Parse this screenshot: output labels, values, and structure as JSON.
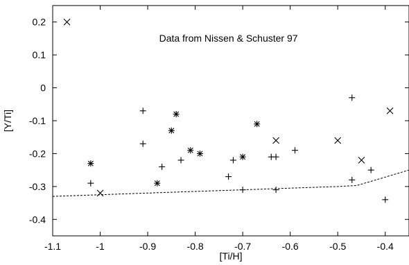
{
  "chart_data": {
    "type": "scatter",
    "title": "",
    "xlabel": "[Ti/H]",
    "ylabel": "[Y/Ti]",
    "xlim": [
      -1.1,
      -0.35
    ],
    "ylim": [
      -0.45,
      0.25
    ],
    "xticks": [
      -1.1,
      -1,
      -0.9,
      -0.8,
      -0.7,
      -0.6,
      -0.5,
      -0.4
    ],
    "xtick_labels": [
      "-1.1",
      "-1",
      "-0.9",
      "-0.8",
      "-0.7",
      "-0.6",
      "-0.5",
      "-0.4"
    ],
    "yticks": [
      0.2,
      0.1,
      0,
      -0.1,
      -0.2,
      -0.3,
      -0.4
    ],
    "ytick_labels": [
      "0.2",
      "0.1",
      "0",
      "-0.1",
      "-0.2",
      "-0.3",
      "-0.4"
    ],
    "grid": false,
    "annotations": [
      {
        "text": "Data from Nissen & Schuster 97",
        "x": -0.73,
        "y": 0.14
      }
    ],
    "series": [
      {
        "marker": "plus",
        "points": [
          [
            -1.02,
            -0.29
          ],
          [
            -0.91,
            -0.07
          ],
          [
            -0.91,
            -0.17
          ],
          [
            -0.87,
            -0.24
          ],
          [
            -0.83,
            -0.22
          ],
          [
            -0.72,
            -0.22
          ],
          [
            -0.73,
            -0.27
          ],
          [
            -0.7,
            -0.31
          ],
          [
            -0.64,
            -0.21
          ],
          [
            -0.63,
            -0.21
          ],
          [
            -0.63,
            -0.31
          ],
          [
            -0.59,
            -0.19
          ],
          [
            -0.47,
            -0.03
          ],
          [
            -0.47,
            -0.28
          ],
          [
            -0.43,
            -0.25
          ],
          [
            -0.4,
            -0.34
          ]
        ]
      },
      {
        "marker": "asterisk",
        "points": [
          [
            -1.02,
            -0.23
          ],
          [
            -0.85,
            -0.13
          ],
          [
            -0.84,
            -0.08
          ],
          [
            -0.88,
            -0.29
          ],
          [
            -0.81,
            -0.19
          ],
          [
            -0.79,
            -0.2
          ],
          [
            -0.7,
            -0.21
          ],
          [
            -0.67,
            -0.11
          ]
        ]
      },
      {
        "marker": "cross",
        "points": [
          [
            -1.07,
            0.2
          ],
          [
            -1.0,
            -0.32
          ],
          [
            -0.63,
            -0.16
          ],
          [
            -0.5,
            -0.16
          ],
          [
            -0.45,
            -0.22
          ],
          [
            -0.39,
            -0.07
          ]
        ]
      },
      {
        "marker": "dashed-line",
        "points": [
          [
            -1.1,
            -0.33
          ],
          [
            -0.9,
            -0.32
          ],
          [
            -0.7,
            -0.31
          ],
          [
            -0.6,
            -0.305
          ],
          [
            -0.5,
            -0.3
          ],
          [
            -0.46,
            -0.297
          ],
          [
            -0.42,
            -0.28
          ],
          [
            -0.35,
            -0.25
          ]
        ]
      }
    ]
  }
}
